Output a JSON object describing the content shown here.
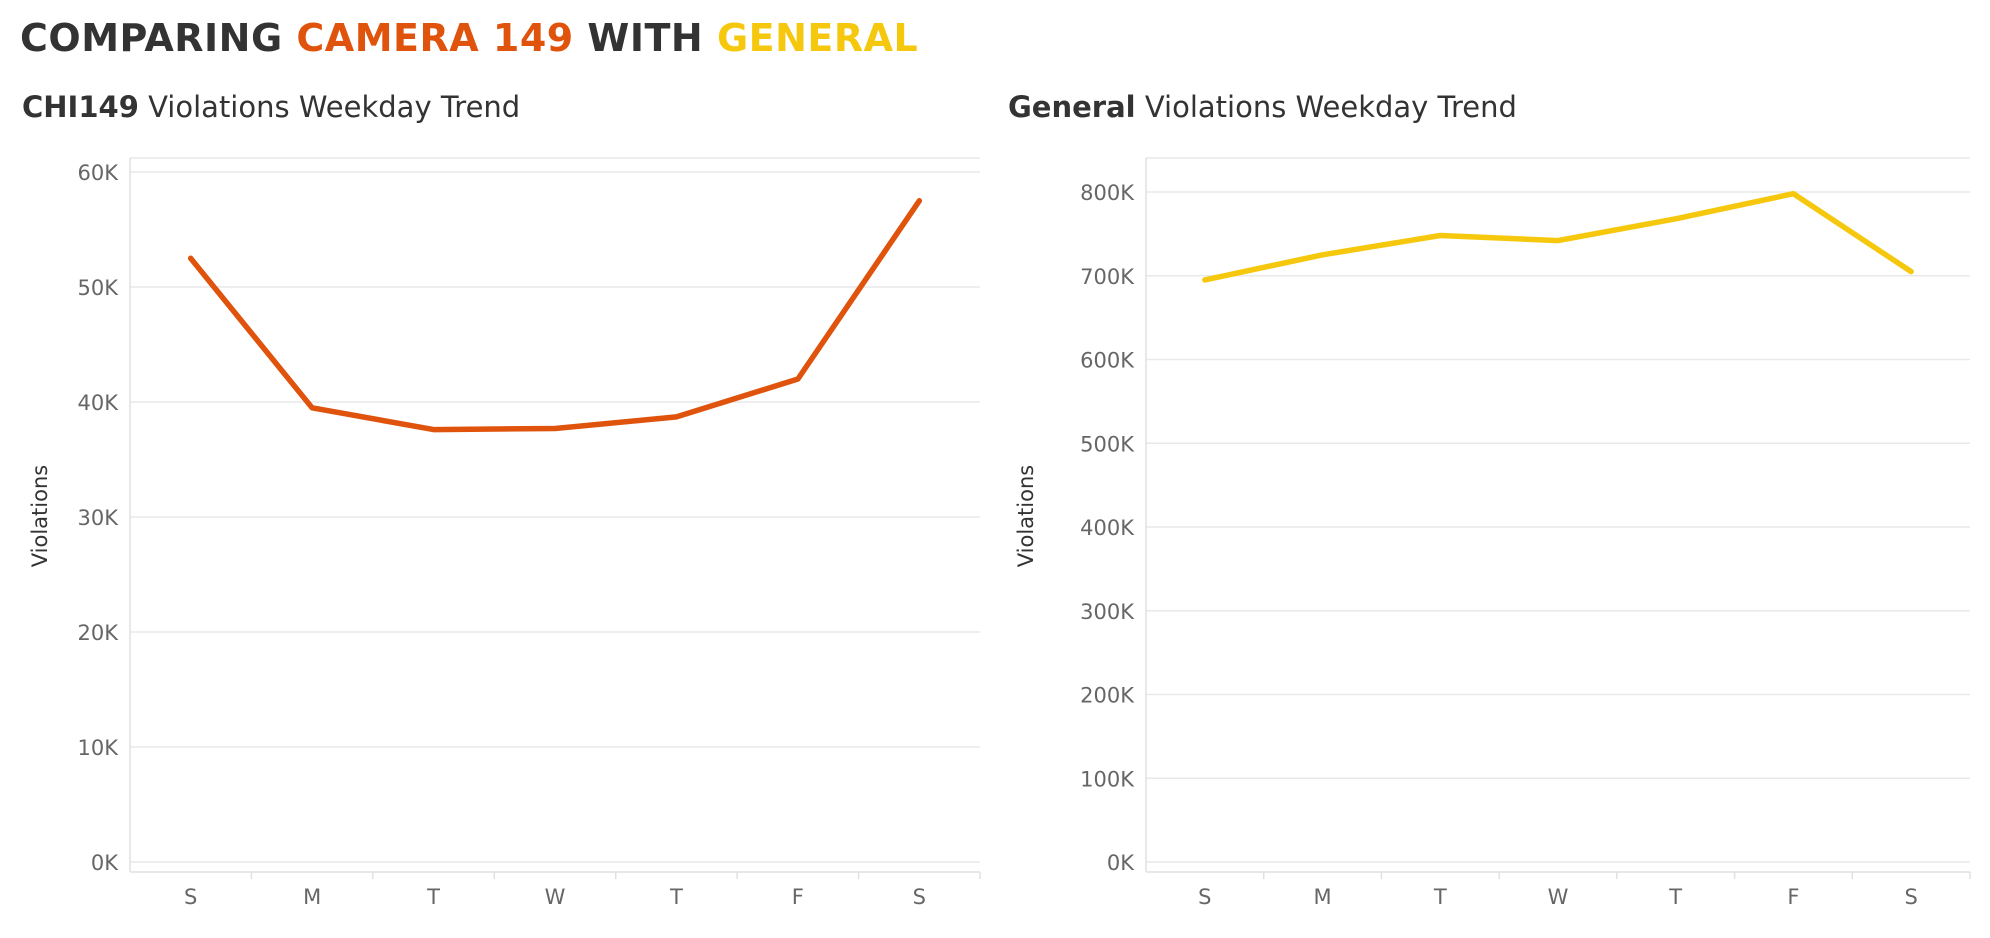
{
  "header": {
    "prefix": "COMPARING ",
    "camera": "CAMERA 149",
    "middle": " WITH ",
    "general": "GENERAL",
    "camera_color": "#E0530C",
    "general_color": "#F6C80D"
  },
  "chart_data": [
    {
      "type": "line",
      "title_bold": "CHI149",
      "title_rest": " Violations Weekday Trend",
      "xlabel": "",
      "ylabel": "Violations",
      "categories": [
        "S",
        "M",
        "T",
        "W",
        "T",
        "F",
        "S"
      ],
      "series": [
        {
          "values": [
            52500,
            39500,
            37600,
            37700,
            38700,
            42000,
            57500
          ],
          "color": "#E0530C"
        }
      ],
      "ylim": [
        0,
        60000
      ],
      "yticks": [
        0,
        10000,
        20000,
        30000,
        40000,
        50000,
        60000
      ],
      "ytick_labels": [
        "0K",
        "10K",
        "20K",
        "30K",
        "40K",
        "50K",
        "60K"
      ],
      "grid": true
    },
    {
      "type": "line",
      "title_bold": "General",
      "title_rest": " Violations Weekday Trend",
      "xlabel": "",
      "ylabel": "Violations",
      "categories": [
        "S",
        "M",
        "T",
        "W",
        "T",
        "F",
        "S"
      ],
      "series": [
        {
          "values": [
            695000,
            725000,
            748000,
            742000,
            768000,
            798000,
            705000
          ],
          "color": "#F6C80D"
        }
      ],
      "ylim": [
        0,
        800000
      ],
      "yticks": [
        0,
        100000,
        200000,
        300000,
        400000,
        500000,
        600000,
        700000,
        800000
      ],
      "ytick_labels": [
        "0K",
        "100K",
        "200K",
        "300K",
        "400K",
        "500K",
        "600K",
        "700K",
        "800K"
      ],
      "grid": true
    }
  ]
}
